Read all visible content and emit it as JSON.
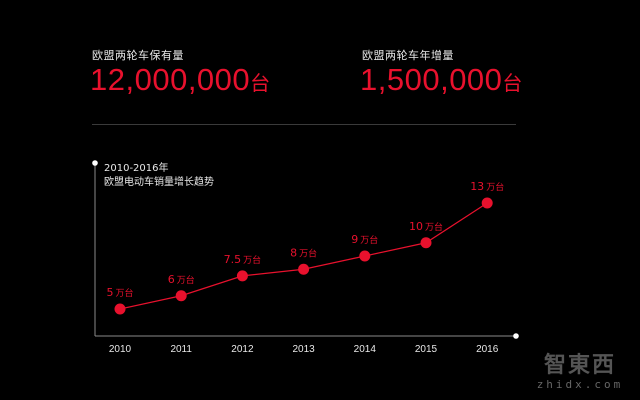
{
  "stats": [
    {
      "label": "欧盟两轮车保有量",
      "value": "12,000,000",
      "unit": "台"
    },
    {
      "label": "欧盟两轮车年增量",
      "value": "1,500,000",
      "unit": "台"
    }
  ],
  "chart_title_line1": "2010-2016年",
  "chart_title_line2": "欧盟电动车销量增长趋势",
  "colors": {
    "accent": "#e8112d",
    "axis": "#8a8a8a",
    "text": "#e8e8e8"
  },
  "watermark": {
    "logo": "智東西",
    "sub": "zhidx.com"
  },
  "chart_data": {
    "type": "line",
    "title": "2010-2016年 欧盟电动车销量增长趋势",
    "categories": [
      "2010",
      "2011",
      "2012",
      "2013",
      "2014",
      "2015",
      "2016"
    ],
    "series": [
      {
        "values": [
          5,
          6,
          7.5,
          8,
          9,
          10,
          13
        ]
      }
    ],
    "data_labels": [
      "5万台",
      "6万台",
      "7.5万台",
      "8万台",
      "9万台",
      "10万台",
      "13万台"
    ],
    "data_label_units": "万台",
    "xlabel": "",
    "ylabel": "",
    "grid": false
  }
}
